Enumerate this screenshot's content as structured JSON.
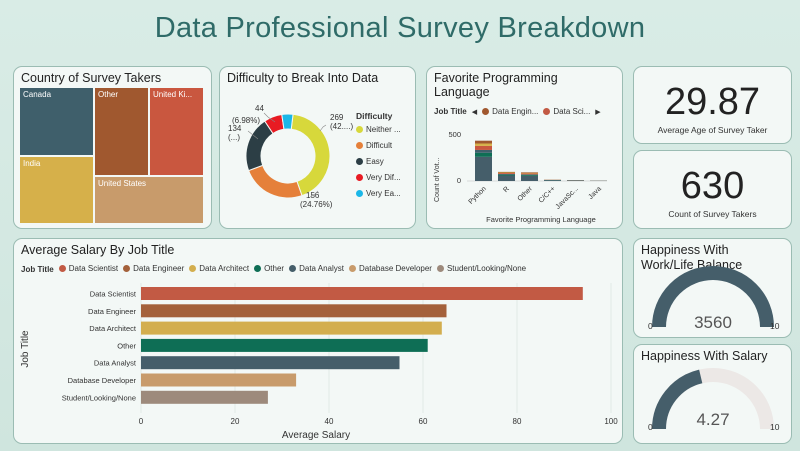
{
  "title": "Data Professional Survey Breakdown",
  "colors": {
    "teal_dark": "#3f5f6b",
    "rust": "#b9563f",
    "brown": "#a0582f",
    "mustard": "#d6b04a",
    "tan": "#c89b6b",
    "green": "#0e6e55",
    "slate": "#3f5f6b",
    "grey_brown": "#9d8a7c",
    "yellow": "#d7d83b",
    "orange": "#e5803a",
    "charcoal": "#2c3e45",
    "red": "#e81b23",
    "cyan": "#1ab7e8"
  },
  "country": {
    "title": "Country of Survey Takers",
    "labels": [
      "Canada",
      "Other",
      "United Ki...",
      "India",
      "United States"
    ]
  },
  "difficulty": {
    "title": "Difficulty to Break Into Data",
    "legend_title": "Difficulty",
    "legend": [
      "Neither ...",
      "Difficult",
      "Easy",
      "Very Dif...",
      "Very Ea..."
    ],
    "labels": {
      "l269": "269",
      "l269b": "(42....)",
      "l156": "156",
      "l156b": "(24.76%)",
      "l134": "134",
      "l134b": "(...)",
      "l44": "44",
      "l44b": "(6.98%)"
    }
  },
  "language": {
    "title": "Favorite Programming Language",
    "legend_title": "Job Title",
    "legend": [
      "Data Engin...",
      "Data Sci..."
    ],
    "ylabel": "Count of Vot...",
    "xlabel": "Favorite Programming Language",
    "yticks": [
      "500",
      "0"
    ]
  },
  "age": {
    "value": "29.87",
    "label": "Average Age of Survey Taker"
  },
  "count": {
    "value": "630",
    "label": "Count of Survey Takers"
  },
  "wlb": {
    "title_line1": "Happiness With",
    "title_line2": "Work/Life Balance",
    "value": "3560",
    "min": "0",
    "max": "10"
  },
  "salary_happy": {
    "title": "Happiness With Salary",
    "value": "4.27",
    "min": "0",
    "max": "10"
  },
  "salary_card": {
    "title": "Average Salary By Job Title",
    "legend_title": "Job Title"
  },
  "chart_data": [
    {
      "type": "bar",
      "title": "Average Salary By Job Title",
      "orientation": "horizontal",
      "xlabel": "Average Salary",
      "ylabel": "Job Title",
      "categories": [
        "Data Scientist",
        "Data Engineer",
        "Data Architect",
        "Other",
        "Data Analyst",
        "Database Developer",
        "Student/Looking/None"
      ],
      "values": [
        94,
        65,
        64,
        61,
        55,
        33,
        27
      ],
      "colors": [
        "#c25a44",
        "#a4613b",
        "#d3ae4e",
        "#0e6e55",
        "#455e6a",
        "#c89b6b",
        "#9d8a7c"
      ],
      "xlim": [
        0,
        100
      ],
      "xticks": [
        0,
        20,
        40,
        60,
        80,
        100
      ],
      "legend": [
        "Data Scientist",
        "Data Engineer",
        "Data Architect",
        "Other",
        "Data Analyst",
        "Database Developer",
        "Student/Looking/None"
      ],
      "legend_placement": "top-left",
      "grid": true
    },
    {
      "type": "pie",
      "title": "Difficulty to Break Into Data",
      "categories": [
        "Neither ...",
        "Difficult",
        "Easy",
        "Very Dif...",
        "Very Ea..."
      ],
      "values": [
        269,
        156,
        134,
        44,
        27
      ],
      "colors": [
        "#d7d83b",
        "#e5803a",
        "#2c3e45",
        "#e81b23",
        "#1ab7e8"
      ]
    },
    {
      "type": "bar",
      "title": "Favorite Programming Language",
      "stacked": true,
      "categories": [
        "Python",
        "R",
        "Other",
        "C/C++",
        "JavaSc...",
        "Java"
      ],
      "values": [
        420,
        95,
        90,
        15,
        10,
        5
      ],
      "ylim": [
        0,
        550
      ],
      "yticks": [
        0,
        500
      ],
      "xlabel": "Favorite Programming Language",
      "ylabel": "Count of Vot..."
    },
    {
      "type": "treemap",
      "title": "Country of Survey Takers",
      "categories": [
        "Canada",
        "Other",
        "United Ki...",
        "India",
        "United States"
      ],
      "colors": [
        "#3f5f6b",
        "#a0582f",
        "#c9573f",
        "#d6b04a",
        "#c89b6b"
      ]
    }
  ]
}
